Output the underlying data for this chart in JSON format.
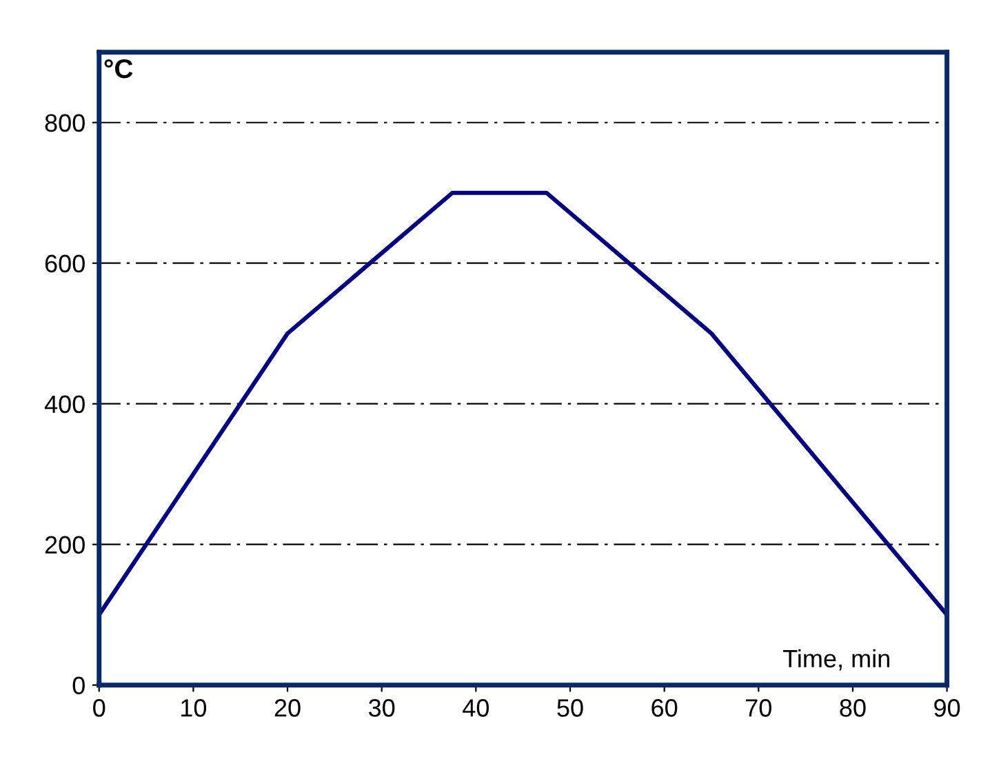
{
  "chart_data": {
    "type": "line",
    "xlabel": "Time, min",
    "ylabel": "°C",
    "x": [
      0,
      20,
      37.5,
      47.5,
      65,
      90
    ],
    "series": [
      {
        "color": "#000080",
        "values": [
          100,
          500,
          700,
          700,
          500,
          100
        ]
      }
    ],
    "xlim": [
      0,
      90
    ],
    "ylim": [
      0,
      900
    ],
    "xticks": [
      0,
      10,
      20,
      30,
      40,
      50,
      60,
      70,
      80,
      90
    ],
    "yticks": [
      0,
      200,
      400,
      600,
      800
    ],
    "grid": "y",
    "line_style": "solid",
    "marker": "none",
    "legend": false
  }
}
